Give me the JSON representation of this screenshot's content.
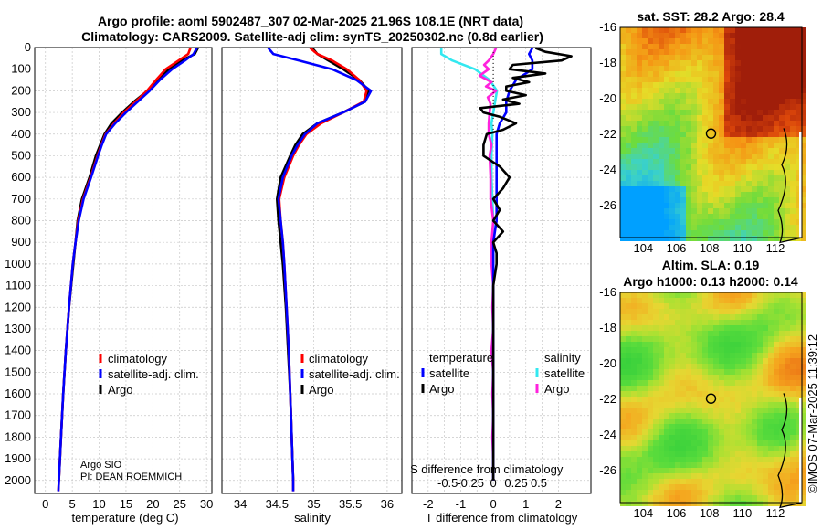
{
  "header": {
    "line1": "Argo profile: aoml 5902487_307 02-Mar-2025 21.96S 108.1E (NRT data)",
    "line2": "Climatology: CARS2009. Satellite-adj clim: synTS_20250302.nc (0.8d earlier)"
  },
  "colors": {
    "climatology": "#ff0000",
    "satellite_adj": "#0000ff",
    "argo": "#000000",
    "salinity_satellite": "#33e8f0",
    "salinity_argo": "#ff22dd"
  },
  "footer": {
    "argo_inst": "Argo SIO",
    "pi": "PI: DEAN ROEMMICH",
    "timestamp": "©IMOS 07-Mar-2025 11:39:12"
  },
  "legends": {
    "temp": [
      "climatology",
      "satellite-adj. clim.",
      "Argo"
    ],
    "sal": [
      "climatology",
      "satellite-adj. clim.",
      "Argo"
    ],
    "diff_temperature_head": "temperature",
    "diff_salinity_head": "salinity",
    "diff_temp_items": [
      "satellite",
      "Argo"
    ],
    "diff_sal_items": [
      "satellite",
      "Argo"
    ]
  },
  "maps": {
    "sst_title": "sat. SST: 28.2 Argo: 28.4",
    "sla_title1": "Altim. SLA: 0.19",
    "sla_title2": "Argo h1000: 0.13 h2000: 0.14",
    "lon_ticks": [
      "104",
      "106",
      "108",
      "110",
      "112"
    ],
    "lat_ticks": [
      "-16",
      "-18",
      "-20",
      "-22",
      "-24",
      "-26"
    ],
    "argo_position": {
      "lon": 108.1,
      "lat": -21.96
    }
  },
  "chart_data": [
    {
      "type": "line",
      "name": "temperature",
      "xlabel": "temperature (deg C)",
      "ylabel": "",
      "xlim": [
        -2,
        31
      ],
      "ylim": [
        2060,
        0
      ],
      "xticks": [
        "0",
        "5",
        "10",
        "15",
        "20",
        "25",
        "30"
      ],
      "yticks": [
        "0",
        "100",
        "200",
        "300",
        "400",
        "500",
        "600",
        "700",
        "800",
        "900",
        "1000",
        "1100",
        "1200",
        "1300",
        "1400",
        "1500",
        "1600",
        "1700",
        "1800",
        "1900",
        "2000"
      ],
      "series": [
        {
          "name": "climatology",
          "depth": [
            2,
            30,
            60,
            100,
            150,
            200,
            250,
            300,
            350,
            400,
            450,
            500,
            600,
            700,
            800,
            900,
            1000,
            1200,
            1400,
            1600,
            1800,
            2000,
            2050
          ],
          "values": [
            27.0,
            26.6,
            24.8,
            22.4,
            20.6,
            18.9,
            16.8,
            14.6,
            12.8,
            11.2,
            10.4,
            9.7,
            8.4,
            7.0,
            6.1,
            5.6,
            5.1,
            4.4,
            3.8,
            3.3,
            2.9,
            2.5,
            2.4
          ]
        },
        {
          "name": "satellite-adj. clim.",
          "depth": [
            2,
            30,
            60,
            100,
            150,
            200,
            250,
            300,
            350,
            400,
            450,
            500,
            600,
            700,
            800,
            900,
            1000,
            1200,
            1400,
            1600,
            1800,
            2000,
            2050
          ],
          "values": [
            28.2,
            27.6,
            26.0,
            23.6,
            21.3,
            19.4,
            17.2,
            15.0,
            13.0,
            11.3,
            10.5,
            9.8,
            8.5,
            7.1,
            6.2,
            5.6,
            5.1,
            4.4,
            3.8,
            3.3,
            2.9,
            2.5,
            2.4
          ]
        },
        {
          "name": "Argo",
          "depth": [
            2,
            30,
            60,
            100,
            150,
            200,
            250,
            300,
            350,
            400,
            450,
            500,
            600,
            700,
            800,
            900,
            1000,
            1200,
            1400,
            1600,
            1800,
            2000
          ],
          "values": [
            28.4,
            27.8,
            25.4,
            23.0,
            21.0,
            19.0,
            16.5,
            14.3,
            12.3,
            11.0,
            10.2,
            9.4,
            8.2,
            6.8,
            6.0,
            5.6,
            5.2,
            4.4,
            3.8,
            3.3,
            2.9,
            2.5
          ]
        }
      ]
    },
    {
      "type": "line",
      "name": "salinity",
      "xlabel": "salinity",
      "xlim": [
        33.75,
        36.2
      ],
      "ylim": [
        2060,
        0
      ],
      "xticks": [
        "34",
        "34.5",
        "35",
        "35.5",
        "36"
      ],
      "series": [
        {
          "name": "climatology",
          "depth": [
            2,
            30,
            60,
            100,
            150,
            200,
            250,
            300,
            350,
            400,
            450,
            500,
            600,
            700,
            800,
            900,
            1000,
            1200,
            1400,
            1600,
            1800,
            2000,
            2050
          ],
          "values": [
            34.95,
            35.05,
            35.25,
            35.45,
            35.62,
            35.72,
            35.68,
            35.4,
            35.1,
            34.9,
            34.8,
            34.72,
            34.6,
            34.53,
            34.55,
            34.58,
            34.6,
            34.63,
            34.66,
            34.68,
            34.7,
            34.72,
            34.72
          ]
        },
        {
          "name": "satellite-adj. clim.",
          "depth": [
            2,
            30,
            60,
            100,
            150,
            200,
            250,
            300,
            350,
            400,
            450,
            500,
            600,
            700,
            800,
            900,
            1000,
            1200,
            1400,
            1600,
            1800,
            2000,
            2050
          ],
          "values": [
            34.38,
            34.45,
            34.8,
            35.25,
            35.58,
            35.78,
            35.7,
            35.4,
            35.05,
            34.88,
            34.78,
            34.7,
            34.58,
            34.52,
            34.55,
            34.58,
            34.6,
            34.63,
            34.66,
            34.68,
            34.7,
            34.72,
            34.72
          ]
        },
        {
          "name": "Argo",
          "depth": [
            2,
            30,
            60,
            100,
            150,
            200,
            250,
            300,
            350,
            400,
            450,
            500,
            600,
            700,
            800,
            900,
            1000,
            1200,
            1400,
            1600,
            1800,
            2000
          ],
          "values": [
            34.98,
            35.05,
            35.2,
            35.4,
            35.62,
            35.75,
            35.7,
            35.4,
            35.05,
            34.85,
            34.75,
            34.68,
            34.55,
            34.5,
            34.52,
            34.55,
            34.58,
            34.62,
            34.65,
            34.68,
            34.7,
            34.72
          ]
        }
      ]
    },
    {
      "type": "line",
      "name": "difference",
      "xlabel": "T difference from climatology",
      "secondary_xlabel": "S difference from climatology",
      "xlim": [
        -2.5,
        3.0
      ],
      "ylim": [
        2060,
        0
      ],
      "xticks": [
        "-2",
        "-1.5",
        "-1",
        "-0.5",
        "0",
        "0.5",
        "1",
        "1.5",
        "2"
      ],
      "s_xticks": [
        "-0.5",
        "-0.25",
        "0",
        "0.25",
        "0.5"
      ],
      "t_xticks_shown": [
        "-2",
        "-1",
        "0",
        "1",
        "2"
      ],
      "s_scale": 2.8,
      "series": [
        {
          "name": "temperature satellite",
          "depth": [
            2,
            30,
            60,
            100,
            150,
            200,
            250,
            300,
            350,
            400,
            450,
            500,
            600,
            700,
            800,
            900,
            1000,
            1200,
            1400,
            1600,
            1800,
            2000
          ],
          "values": [
            1.2,
            1.1,
            1.2,
            1.2,
            0.7,
            0.5,
            0.4,
            0.4,
            0.2,
            0.1,
            0.1,
            0.1,
            0.1,
            0.1,
            0.1,
            0.0,
            0.0,
            0.0,
            0.0,
            0.0,
            0.0,
            0.0
          ]
        },
        {
          "name": "temperature Argo",
          "depth": [
            2,
            20,
            40,
            60,
            80,
            100,
            120,
            140,
            160,
            180,
            200,
            220,
            240,
            260,
            280,
            300,
            320,
            350,
            380,
            400,
            450,
            500,
            550,
            600,
            650,
            700,
            750,
            800,
            850,
            900,
            950,
            1000,
            1100,
            1200,
            1300,
            1400,
            1500,
            1600,
            1700,
            1800,
            1900,
            2000
          ],
          "values": [
            1.3,
            1.6,
            2.4,
            2.1,
            0.6,
            0.5,
            1.6,
            0.6,
            1.1,
            0.4,
            0.4,
            1.0,
            0.3,
            0.8,
            -0.4,
            -0.3,
            0.2,
            0.7,
            0.3,
            -0.2,
            -0.3,
            -0.3,
            0.2,
            0.5,
            0.3,
            0.0,
            0.2,
            0.0,
            0.3,
            0.0,
            0.1,
            0.1,
            0.0,
            0.0,
            0.0,
            0.0,
            0.0,
            0.0,
            0.0,
            0.0,
            0.0,
            0.0
          ]
        },
        {
          "name": "salinity satellite",
          "depth": [
            2,
            30,
            60,
            100,
            150,
            200,
            250,
            300,
            350,
            400,
            500,
            600,
            700,
            800,
            900,
            1000,
            1200,
            1400,
            1600,
            1800,
            2000
          ],
          "values": [
            -0.57,
            -0.57,
            -0.45,
            -0.2,
            -0.04,
            0.04,
            0.02,
            0.0,
            -0.02,
            -0.01,
            -0.02,
            -0.02,
            -0.01,
            0.0,
            0.0,
            0.0,
            0.0,
            0.0,
            0.0,
            0.0,
            0.0
          ]
        },
        {
          "name": "salinity Argo",
          "depth": [
            2,
            30,
            60,
            80,
            100,
            130,
            160,
            180,
            200,
            230,
            260,
            300,
            350,
            400,
            450,
            500,
            600,
            700,
            800,
            900,
            1000,
            1100,
            1200,
            1300,
            1400,
            1500,
            1600,
            1700,
            1800,
            1900,
            2000
          ],
          "values": [
            0.03,
            0.0,
            -0.05,
            -0.1,
            -0.05,
            -0.15,
            -0.02,
            -0.08,
            0.03,
            -0.06,
            -0.03,
            -0.04,
            -0.05,
            -0.05,
            -0.02,
            -0.04,
            -0.03,
            -0.03,
            0.0,
            -0.02,
            -0.02,
            0.0,
            -0.01,
            0.0,
            -0.02,
            0.0,
            -0.01,
            0.0,
            -0.01,
            0.0,
            0.0
          ]
        }
      ]
    }
  ]
}
